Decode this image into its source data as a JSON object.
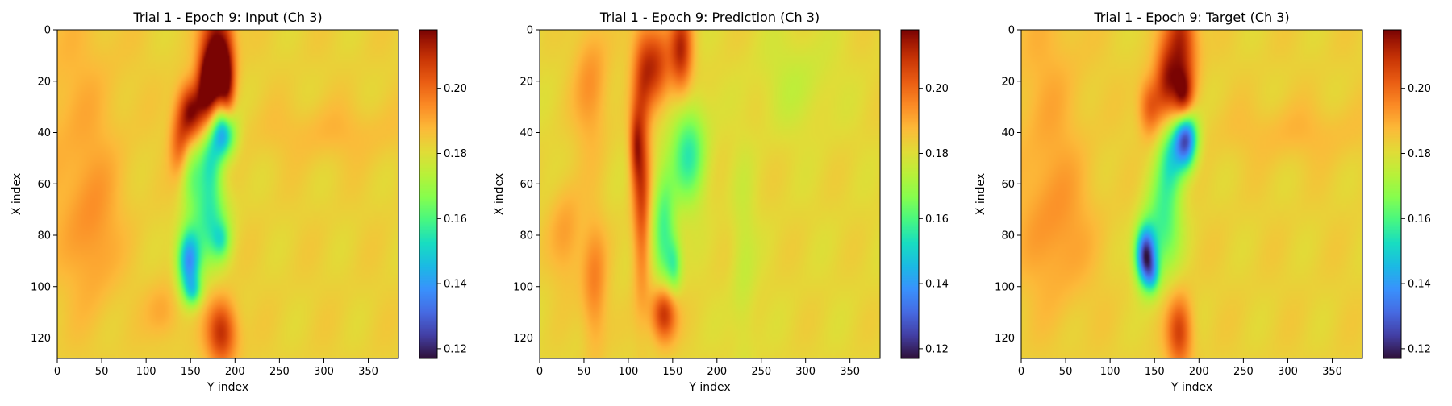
{
  "chart_data": [
    {
      "type": "heatmap",
      "title": "Trial 1 - Epoch 9: Input (Ch 3)",
      "xlabel": "Y index",
      "ylabel": "X index",
      "x_range": [
        0,
        384
      ],
      "y_range": [
        0,
        128
      ],
      "y_inverted": true,
      "x_ticks": [
        0,
        50,
        100,
        150,
        200,
        250,
        300,
        350
      ],
      "y_ticks": [
        0,
        20,
        40,
        60,
        80,
        100,
        120
      ],
      "colorbar": {
        "vmin": 0.117,
        "vmax": 0.218,
        "ticks": [
          "0.12",
          "0.14",
          "0.16",
          "0.18",
          "0.20"
        ],
        "colormap": "turbo"
      },
      "background": 0.183,
      "features": [
        {
          "x": 180,
          "y": 5,
          "sx": 12,
          "sy": 14,
          "a": 0.03
        },
        {
          "x": 182,
          "y": 18,
          "sx": 9,
          "sy": 9,
          "a": 0.022
        },
        {
          "x": 168,
          "y": 22,
          "sx": 8,
          "sy": 10,
          "a": 0.032
        },
        {
          "x": 150,
          "y": 32,
          "sx": 10,
          "sy": 8,
          "a": 0.034
        },
        {
          "x": 138,
          "y": 45,
          "sx": 8,
          "sy": 9,
          "a": 0.018
        },
        {
          "x": 192,
          "y": 24,
          "sx": 6,
          "sy": 14,
          "a": 0.02
        },
        {
          "x": 188,
          "y": 40,
          "sx": 9,
          "sy": 7,
          "a": -0.045
        },
        {
          "x": 172,
          "y": 50,
          "sx": 9,
          "sy": 10,
          "a": -0.022
        },
        {
          "x": 150,
          "y": 55,
          "sx": 9,
          "sy": 10,
          "a": -0.015
        },
        {
          "x": 172,
          "y": 74,
          "sx": 14,
          "sy": 12,
          "a": -0.026
        },
        {
          "x": 148,
          "y": 90,
          "sx": 9,
          "sy": 9,
          "a": -0.045
        },
        {
          "x": 153,
          "y": 102,
          "sx": 7,
          "sy": 4,
          "a": -0.018
        },
        {
          "x": 185,
          "y": 118,
          "sx": 12,
          "sy": 9,
          "a": 0.028
        },
        {
          "x": 185,
          "y": 82,
          "sx": 7,
          "sy": 5,
          "a": -0.015
        },
        {
          "x": 20,
          "y": 40,
          "sx": 40,
          "sy": 40,
          "a": 0.006
        },
        {
          "x": 40,
          "y": 80,
          "sx": 20,
          "sy": 20,
          "a": 0.008
        },
        {
          "x": 120,
          "y": 110,
          "sx": 14,
          "sy": 8,
          "a": 0.008
        },
        {
          "x": 310,
          "y": 40,
          "sx": 60,
          "sy": 8,
          "a": 0.005
        }
      ]
    },
    {
      "type": "heatmap",
      "title": "Trial 1 - Epoch 9: Prediction (Ch 3)",
      "xlabel": "Y index",
      "ylabel": "X index",
      "x_range": [
        0,
        384
      ],
      "y_range": [
        0,
        128
      ],
      "y_inverted": true,
      "x_ticks": [
        0,
        50,
        100,
        150,
        200,
        250,
        300,
        350
      ],
      "y_ticks": [
        0,
        20,
        40,
        60,
        80,
        100,
        120
      ],
      "colorbar": {
        "vmin": 0.117,
        "vmax": 0.218,
        "ticks": [
          "0.12",
          "0.14",
          "0.16",
          "0.18",
          "0.20"
        ],
        "colormap": "turbo"
      },
      "background": 0.182,
      "features": [
        {
          "x": 128,
          "y": 14,
          "sx": 14,
          "sy": 12,
          "a": 0.028
        },
        {
          "x": 160,
          "y": 8,
          "sx": 9,
          "sy": 12,
          "a": 0.028
        },
        {
          "x": 115,
          "y": 60,
          "sx": 7,
          "sy": 30,
          "a": 0.025
        },
        {
          "x": 108,
          "y": 45,
          "sx": 5,
          "sy": 10,
          "a": 0.018
        },
        {
          "x": 140,
          "y": 110,
          "sx": 10,
          "sy": 8,
          "a": 0.034
        },
        {
          "x": 168,
          "y": 48,
          "sx": 14,
          "sy": 14,
          "a": -0.026
        },
        {
          "x": 140,
          "y": 80,
          "sx": 9,
          "sy": 18,
          "a": -0.024
        },
        {
          "x": 152,
          "y": 92,
          "sx": 6,
          "sy": 8,
          "a": -0.018
        },
        {
          "x": 58,
          "y": 22,
          "sx": 14,
          "sy": 18,
          "a": 0.012
        },
        {
          "x": 62,
          "y": 100,
          "sx": 10,
          "sy": 18,
          "a": 0.014
        },
        {
          "x": 30,
          "y": 80,
          "sx": 14,
          "sy": 14,
          "a": 0.01
        },
        {
          "x": 230,
          "y": 90,
          "sx": 10,
          "sy": 30,
          "a": -0.006
        },
        {
          "x": 290,
          "y": 20,
          "sx": 30,
          "sy": 14,
          "a": -0.006
        }
      ]
    },
    {
      "type": "heatmap",
      "title": "Trial 1 - Epoch 9: Target (Ch 3)",
      "xlabel": "Y index",
      "ylabel": "X index",
      "x_range": [
        0,
        384
      ],
      "y_range": [
        0,
        128
      ],
      "y_inverted": true,
      "x_ticks": [
        0,
        50,
        100,
        150,
        200,
        250,
        300,
        350
      ],
      "y_ticks": [
        0,
        20,
        40,
        60,
        80,
        100,
        120
      ],
      "colorbar": {
        "vmin": 0.117,
        "vmax": 0.218,
        "ticks": [
          "0.12",
          "0.14",
          "0.16",
          "0.18",
          "0.20"
        ],
        "colormap": "turbo"
      },
      "background": 0.183,
      "features": [
        {
          "x": 180,
          "y": 5,
          "sx": 12,
          "sy": 14,
          "a": 0.03
        },
        {
          "x": 183,
          "y": 28,
          "sx": 8,
          "sy": 8,
          "a": 0.03
        },
        {
          "x": 163,
          "y": 20,
          "sx": 9,
          "sy": 10,
          "a": 0.024
        },
        {
          "x": 145,
          "y": 30,
          "sx": 9,
          "sy": 8,
          "a": 0.02
        },
        {
          "x": 185,
          "y": 42,
          "sx": 9,
          "sy": 8,
          "a": -0.06
        },
        {
          "x": 168,
          "y": 50,
          "sx": 10,
          "sy": 10,
          "a": -0.022
        },
        {
          "x": 160,
          "y": 75,
          "sx": 14,
          "sy": 14,
          "a": -0.024
        },
        {
          "x": 140,
          "y": 88,
          "sx": 8,
          "sy": 8,
          "a": -0.06
        },
        {
          "x": 148,
          "y": 96,
          "sx": 6,
          "sy": 5,
          "a": -0.018
        },
        {
          "x": 178,
          "y": 118,
          "sx": 10,
          "sy": 10,
          "a": 0.024
        },
        {
          "x": 40,
          "y": 80,
          "sx": 30,
          "sy": 20,
          "a": 0.008
        },
        {
          "x": 30,
          "y": 30,
          "sx": 30,
          "sy": 40,
          "a": 0.006
        },
        {
          "x": 310,
          "y": 40,
          "sx": 60,
          "sy": 8,
          "a": 0.005
        }
      ]
    }
  ]
}
